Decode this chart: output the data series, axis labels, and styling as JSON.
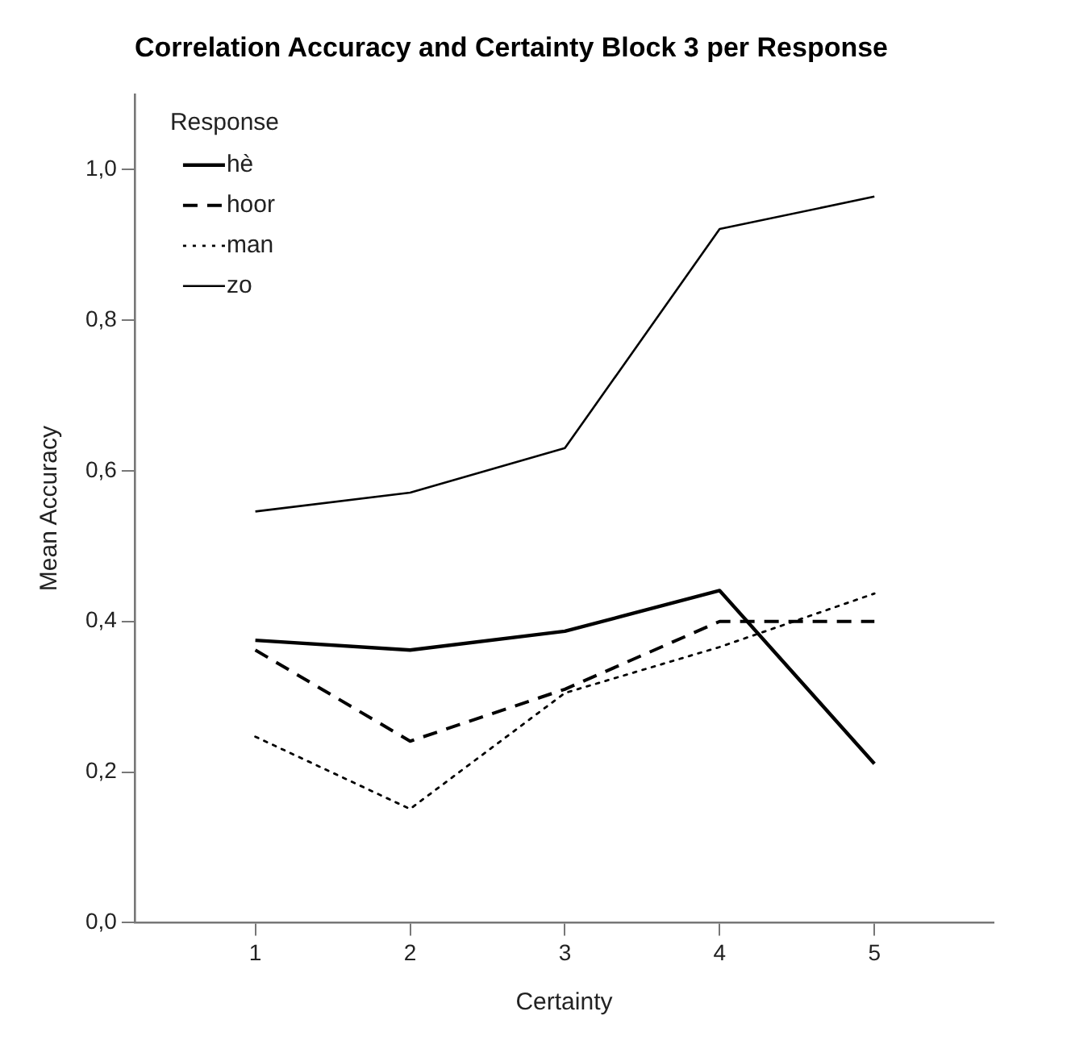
{
  "chart_data": {
    "type": "line",
    "title": "Correlation Accuracy and Certainty Block 3 per Response",
    "xlabel": "Certainty",
    "ylabel": "Mean Accuracy",
    "legend_title": "Response",
    "legend": "top left",
    "grid": false,
    "marker": "none",
    "x": [
      1,
      2,
      3,
      4,
      5
    ],
    "xlim": [
      0.22,
      5.77
    ],
    "xticks": [
      1,
      2,
      3,
      4,
      5
    ],
    "ylim": [
      0,
      1.1
    ],
    "yticks": [
      {
        "value": 0,
        "label": "0,0"
      },
      {
        "value": 0.2,
        "label": "0,2"
      },
      {
        "value": 0.4,
        "label": "0,4"
      },
      {
        "value": 0.6,
        "label": "0,6"
      },
      {
        "value": 0.8,
        "label": "0,8"
      },
      {
        "value": 1,
        "label": "1,0"
      }
    ],
    "series": [
      {
        "name": "hè",
        "color": "#000000",
        "line_style": "solid",
        "values": [
          0.375,
          0.362,
          0.387,
          0.441,
          0.211
        ]
      },
      {
        "name": "hoor",
        "color": "#000000",
        "line_style": "dashed",
        "values": [
          0.362,
          0.241,
          0.31,
          0.4,
          0.4
        ]
      },
      {
        "name": "man",
        "color": "#000000",
        "line_style": "dotted",
        "values": [
          0.247,
          0.151,
          0.305,
          0.366,
          0.437
        ]
      },
      {
        "name": "zo",
        "color": "#000000",
        "line_style": "solid",
        "values": [
          0.546,
          0.571,
          0.63,
          0.921,
          0.964
        ]
      }
    ]
  }
}
